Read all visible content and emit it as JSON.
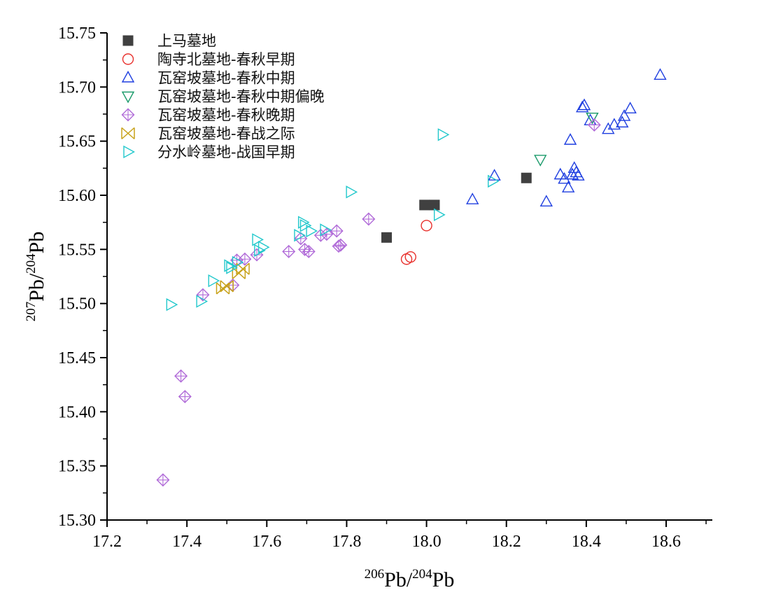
{
  "chart_data": {
    "type": "scatter",
    "title": "",
    "xlabel": {
      "iso1_mass": "206",
      "iso1_sym": "Pb",
      "slash": "/",
      "iso2_mass": "204",
      "iso2_sym": "Pb"
    },
    "ylabel": {
      "iso1_mass": "207",
      "iso1_sym": "Pb",
      "slash": "/",
      "iso2_mass": "204",
      "iso2_sym": "Pb"
    },
    "xlim": [
      17.2,
      18.7
    ],
    "ylim": [
      15.3,
      15.75
    ],
    "x_ticks": [
      "17.2",
      "17.4",
      "17.6",
      "17.8",
      "18.0",
      "18.2",
      "18.4",
      "18.6"
    ],
    "y_ticks": [
      "15.30",
      "15.35",
      "15.40",
      "15.45",
      "15.50",
      "15.55",
      "15.60",
      "15.65",
      "15.70",
      "15.75"
    ],
    "grid": false,
    "legend_position": "top-left",
    "series": [
      {
        "name": "上马墓地",
        "marker": "square-filled",
        "color": "#404040",
        "points": [
          [
            17.9,
            15.561
          ],
          [
            17.995,
            15.591
          ],
          [
            18.02,
            15.591
          ],
          [
            18.25,
            15.616
          ]
        ]
      },
      {
        "name": "陶寺北墓地-春秋早期",
        "marker": "circle",
        "color": "#e8302c",
        "points": [
          [
            17.95,
            15.541
          ],
          [
            17.96,
            15.543
          ],
          [
            18.0,
            15.572
          ]
        ]
      },
      {
        "name": "瓦窑坡墓地-春秋中期",
        "marker": "triangle-up",
        "color": "#1f3fe0",
        "points": [
          [
            18.115,
            15.596
          ],
          [
            18.17,
            15.618
          ],
          [
            18.3,
            15.594
          ],
          [
            18.335,
            15.619
          ],
          [
            18.345,
            15.615
          ],
          [
            18.355,
            15.607
          ],
          [
            18.36,
            15.651
          ],
          [
            18.365,
            15.619
          ],
          [
            18.37,
            15.625
          ],
          [
            18.375,
            15.621
          ],
          [
            18.38,
            15.618
          ],
          [
            18.39,
            15.681
          ],
          [
            18.395,
            15.683
          ],
          [
            18.41,
            15.669
          ],
          [
            18.455,
            15.661
          ],
          [
            18.47,
            15.665
          ],
          [
            18.49,
            15.667
          ],
          [
            18.495,
            15.673
          ],
          [
            18.51,
            15.68
          ],
          [
            18.585,
            15.711
          ]
        ]
      },
      {
        "name": "瓦窑坡墓地-春秋中期偏晚",
        "marker": "triangle-down",
        "color": "#1a9a6a",
        "points": [
          [
            18.285,
            15.633
          ],
          [
            18.415,
            15.672
          ]
        ]
      },
      {
        "name": "瓦窑坡墓地-春秋晚期",
        "marker": "diamond-plus",
        "color": "#b06ad8",
        "points": [
          [
            17.34,
            15.337
          ],
          [
            17.385,
            15.433
          ],
          [
            17.395,
            15.414
          ],
          [
            17.44,
            15.508
          ],
          [
            17.515,
            15.517
          ],
          [
            17.525,
            15.54
          ],
          [
            17.545,
            15.541
          ],
          [
            17.575,
            15.545
          ],
          [
            17.655,
            15.548
          ],
          [
            17.685,
            15.56
          ],
          [
            17.695,
            15.55
          ],
          [
            17.705,
            15.548
          ],
          [
            17.735,
            15.563
          ],
          [
            17.75,
            15.564
          ],
          [
            17.775,
            15.567
          ],
          [
            17.78,
            15.553
          ],
          [
            17.785,
            15.554
          ],
          [
            17.855,
            15.578
          ],
          [
            18.42,
            15.665
          ]
        ]
      },
      {
        "name": "瓦窑坡墓地-春战之际",
        "marker": "bowtie-x",
        "color": "#c8a21a",
        "points": [
          [
            17.49,
            15.514
          ],
          [
            17.5,
            15.516
          ],
          [
            17.53,
            15.528
          ],
          [
            17.54,
            15.532
          ]
        ]
      },
      {
        "name": "分水岭墓地-战国早期",
        "marker": "triangle-right",
        "color": "#22c8cc",
        "points": [
          [
            17.36,
            15.499
          ],
          [
            17.435,
            15.502
          ],
          [
            17.465,
            15.521
          ],
          [
            17.505,
            15.535
          ],
          [
            17.51,
            15.533
          ],
          [
            17.525,
            15.538
          ],
          [
            17.575,
            15.559
          ],
          [
            17.58,
            15.549
          ],
          [
            17.59,
            15.552
          ],
          [
            17.68,
            15.563
          ],
          [
            17.69,
            15.575
          ],
          [
            17.695,
            15.572
          ],
          [
            17.71,
            15.567
          ],
          [
            17.745,
            15.568
          ],
          [
            17.81,
            15.603
          ],
          [
            18.03,
            15.582
          ],
          [
            18.04,
            15.656
          ],
          [
            18.165,
            15.613
          ]
        ]
      }
    ]
  }
}
